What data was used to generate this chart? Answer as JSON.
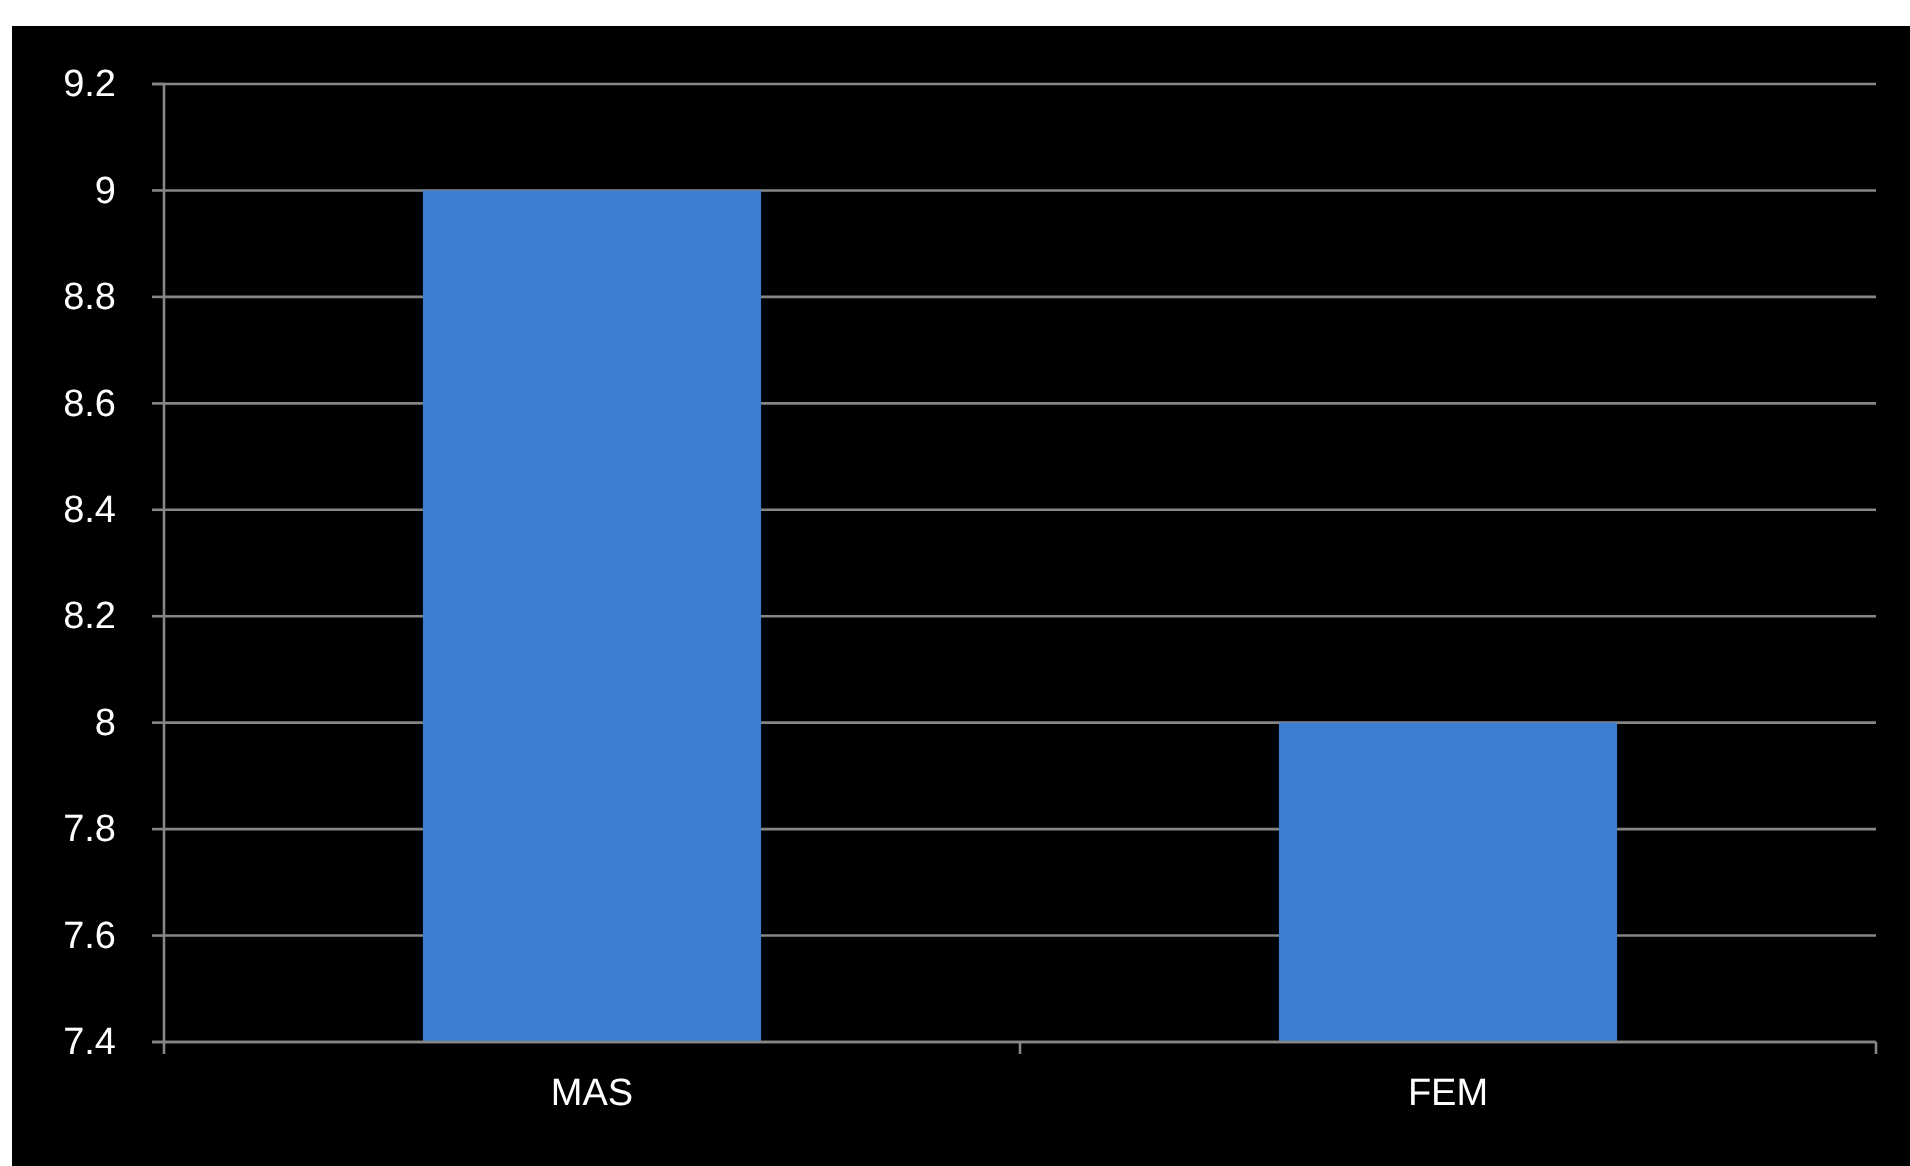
{
  "chart_data": {
    "type": "bar",
    "categories": [
      "MAS",
      "FEM"
    ],
    "values": [
      9,
      8
    ],
    "color": "#3d7dcf",
    "ylim": [
      7.4,
      9.2
    ],
    "yticks": [
      7.4,
      7.6,
      7.8,
      8,
      8.2,
      8.4,
      8.6,
      8.8,
      9,
      9.2
    ],
    "grid": "y"
  }
}
